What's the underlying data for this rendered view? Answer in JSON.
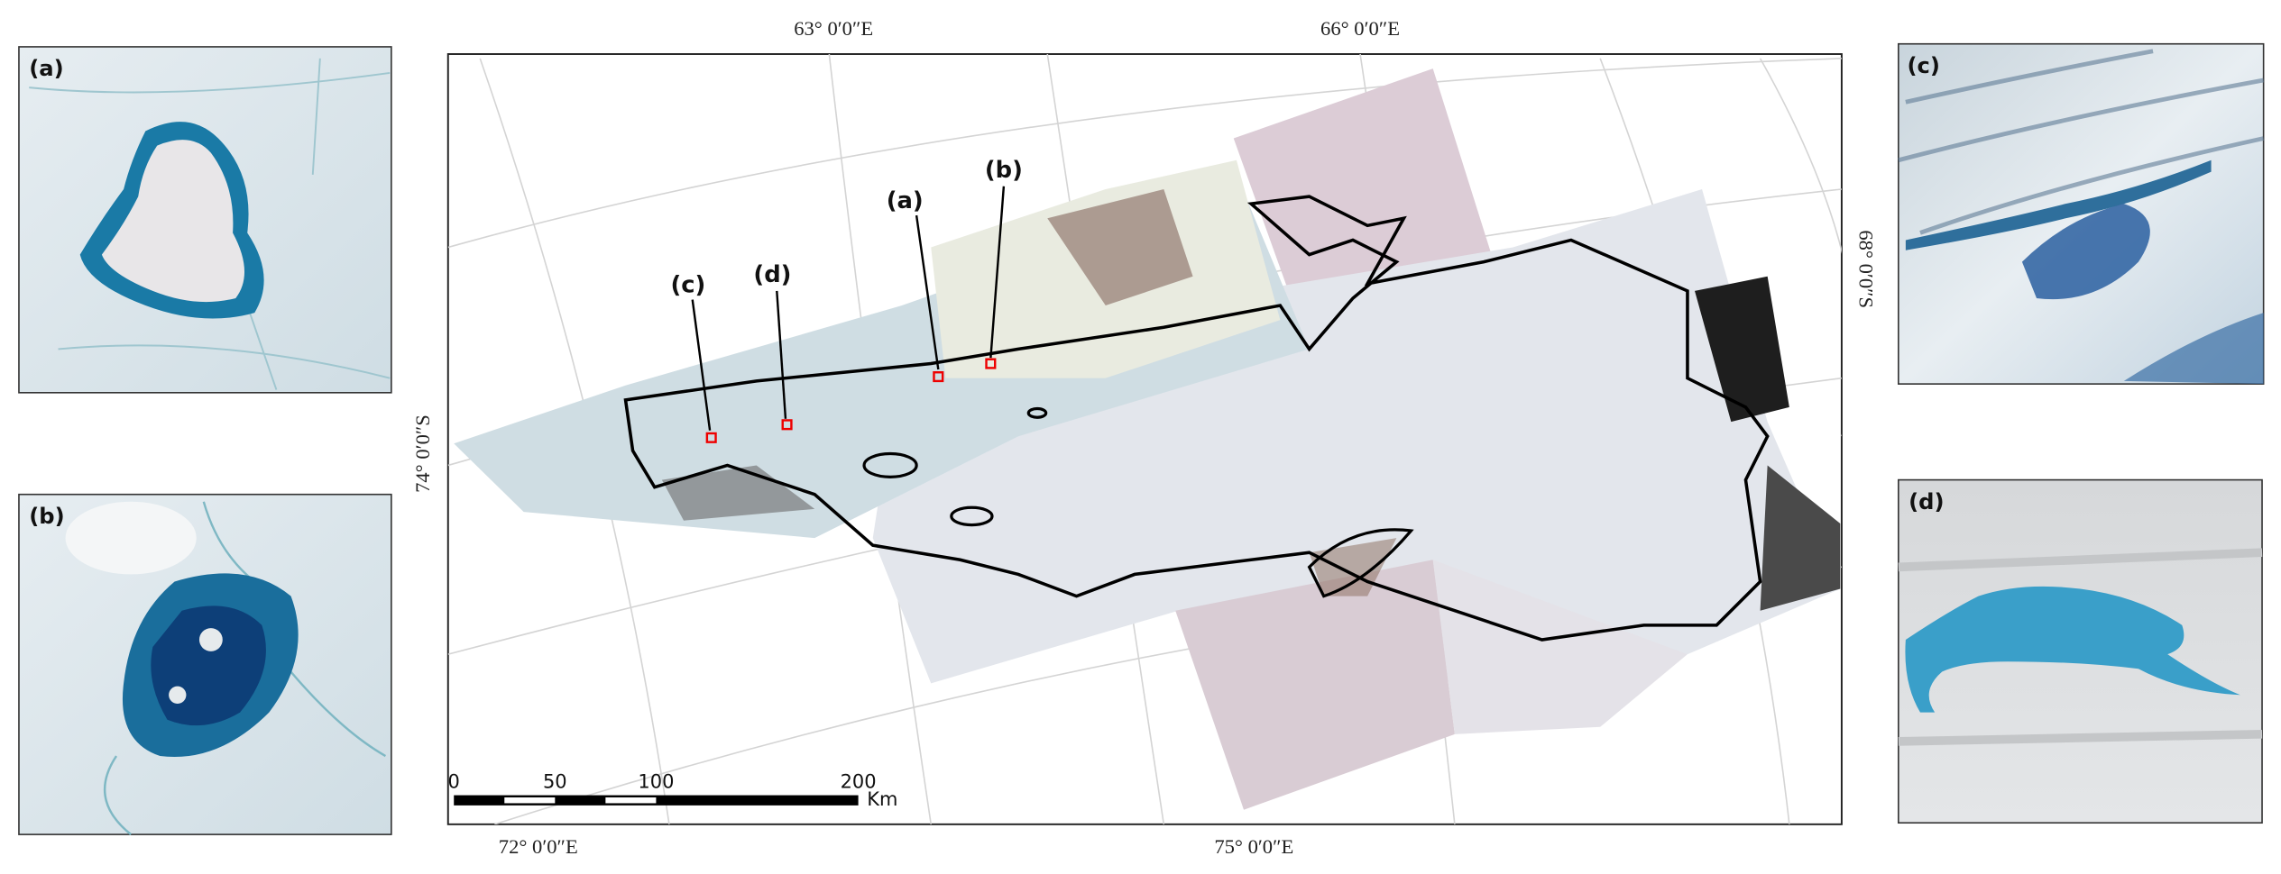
{
  "panels": [
    {
      "label": "(a)"
    },
    {
      "label": "(b)"
    },
    {
      "label": "(c)"
    },
    {
      "label": "(d)"
    }
  ],
  "map": {
    "graticule_labels": {
      "top": [
        "63° 0′0″E",
        "66° 0′0″E"
      ],
      "bottom": [
        "72° 0′0″E",
        "75° 0′0″E"
      ],
      "left": [
        "74° 0′0″S"
      ],
      "right": [
        "68° 0′0″S"
      ]
    },
    "callouts": [
      "(a)",
      "(b)",
      "(c)",
      "(d)"
    ],
    "scale_bar": {
      "ticks": [
        0,
        50,
        100,
        200
      ],
      "unit": "Km"
    }
  }
}
